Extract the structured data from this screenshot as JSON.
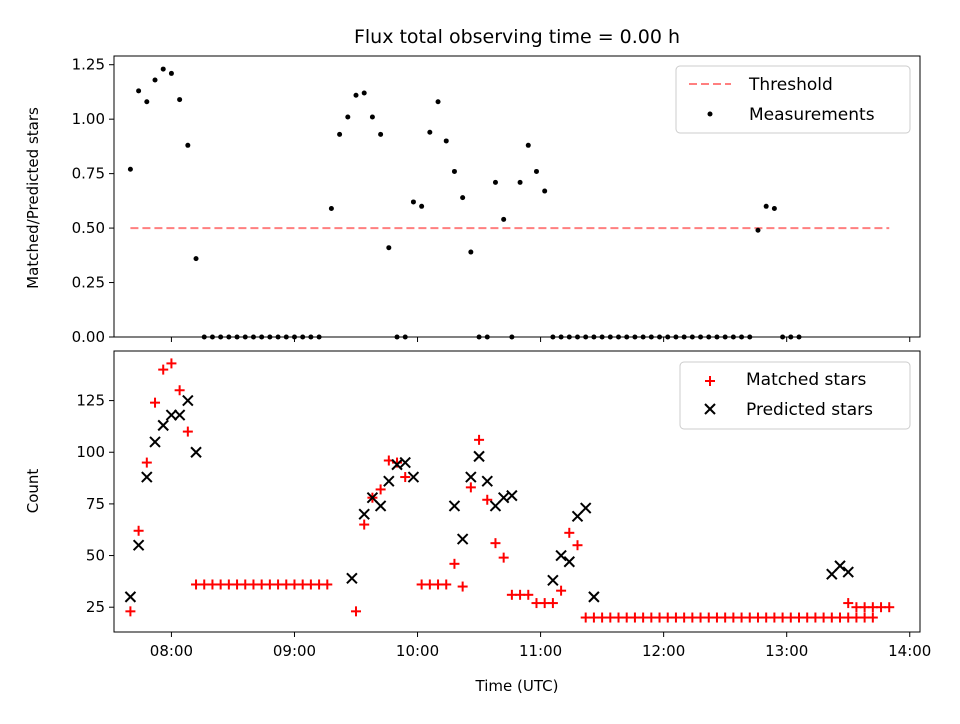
{
  "chart_data": [
    {
      "type": "scatter",
      "title": "Flux total observing time = 0.00 h",
      "xlabel": "",
      "ylabel": "Matched/Predicted stars",
      "ylim": [
        0.0,
        1.29
      ],
      "yticks": [
        0.0,
        0.25,
        0.5,
        0.75,
        1.0,
        1.25
      ],
      "ytick_labels": [
        "0.00",
        "0.25",
        "0.50",
        "0.75",
        "1.00",
        "1.25"
      ],
      "xlim": [
        "07:32",
        "14:05"
      ],
      "xticks": [
        "08:00",
        "09:00",
        "10:00",
        "11:00",
        "12:00",
        "13:00",
        "14:00"
      ],
      "legend_position": "top-right",
      "legend": [
        {
          "label": "Threshold",
          "kind": "dashed-line",
          "color": "#ff7f7f"
        },
        {
          "label": "Measurements",
          "kind": "dot",
          "color": "#000000"
        }
      ],
      "threshold": {
        "name": "Threshold",
        "y": 0.5,
        "x_start": "07:40",
        "x_end": "13:50",
        "color": "#ff7f7f"
      },
      "series": [
        {
          "name": "Measurements",
          "color": "#000000",
          "points": [
            [
              "07:40",
              0.77
            ],
            [
              "07:44",
              1.13
            ],
            [
              "07:48",
              1.08
            ],
            [
              "07:52",
              1.18
            ],
            [
              "07:56",
              1.23
            ],
            [
              "08:00",
              1.21
            ],
            [
              "08:04",
              1.09
            ],
            [
              "08:08",
              0.88
            ],
            [
              "08:12",
              0.36
            ],
            [
              "08:16",
              0.0
            ],
            [
              "08:20",
              0.0
            ],
            [
              "08:24",
              0.0
            ],
            [
              "08:28",
              0.0
            ],
            [
              "08:32",
              0.0
            ],
            [
              "08:36",
              0.0
            ],
            [
              "08:40",
              0.0
            ],
            [
              "08:44",
              0.0
            ],
            [
              "08:48",
              0.0
            ],
            [
              "08:52",
              0.0
            ],
            [
              "08:56",
              0.0
            ],
            [
              "09:00",
              0.0
            ],
            [
              "09:04",
              0.0
            ],
            [
              "09:08",
              0.0
            ],
            [
              "09:12",
              0.0
            ],
            [
              "09:18",
              0.59
            ],
            [
              "09:22",
              0.93
            ],
            [
              "09:26",
              1.01
            ],
            [
              "09:30",
              1.11
            ],
            [
              "09:34",
              1.12
            ],
            [
              "09:38",
              1.01
            ],
            [
              "09:42",
              0.93
            ],
            [
              "09:46",
              0.41
            ],
            [
              "09:50",
              0.0
            ],
            [
              "09:54",
              0.0
            ],
            [
              "09:58",
              0.62
            ],
            [
              "10:02",
              0.6
            ],
            [
              "10:06",
              0.94
            ],
            [
              "10:10",
              1.08
            ],
            [
              "10:14",
              0.9
            ],
            [
              "10:18",
              0.76
            ],
            [
              "10:22",
              0.64
            ],
            [
              "10:26",
              0.39
            ],
            [
              "10:30",
              0.0
            ],
            [
              "10:34",
              0.0
            ],
            [
              "10:38",
              0.71
            ],
            [
              "10:42",
              0.54
            ],
            [
              "10:46",
              0.0
            ],
            [
              "10:50",
              0.71
            ],
            [
              "10:54",
              0.88
            ],
            [
              "10:58",
              0.76
            ],
            [
              "11:02",
              0.67
            ],
            [
              "11:06",
              0.0
            ],
            [
              "11:10",
              0.0
            ],
            [
              "11:14",
              0.0
            ],
            [
              "11:18",
              0.0
            ],
            [
              "11:22",
              0.0
            ],
            [
              "11:26",
              0.0
            ],
            [
              "11:30",
              0.0
            ],
            [
              "11:34",
              0.0
            ],
            [
              "11:38",
              0.0
            ],
            [
              "11:42",
              0.0
            ],
            [
              "11:46",
              0.0
            ],
            [
              "11:50",
              0.0
            ],
            [
              "11:54",
              0.0
            ],
            [
              "11:58",
              0.0
            ],
            [
              "12:02",
              0.0
            ],
            [
              "12:06",
              0.0
            ],
            [
              "12:10",
              0.0
            ],
            [
              "12:14",
              0.0
            ],
            [
              "12:18",
              0.0
            ],
            [
              "12:22",
              0.0
            ],
            [
              "12:26",
              0.0
            ],
            [
              "12:30",
              0.0
            ],
            [
              "12:34",
              0.0
            ],
            [
              "12:38",
              0.0
            ],
            [
              "12:42",
              0.0
            ],
            [
              "12:46",
              0.49
            ],
            [
              "12:50",
              0.6
            ],
            [
              "12:54",
              0.59
            ],
            [
              "12:58",
              0.0
            ],
            [
              "13:02",
              0.0
            ],
            [
              "13:06",
              0.0
            ]
          ]
        }
      ]
    },
    {
      "type": "scatter",
      "title": "",
      "xlabel": "Time (UTC)",
      "ylabel": "Count",
      "ylim": [
        13,
        149
      ],
      "yticks": [
        25,
        50,
        75,
        100,
        125
      ],
      "ytick_labels": [
        "25",
        "50",
        "75",
        "100",
        "125"
      ],
      "xlim": [
        "07:32",
        "14:05"
      ],
      "xticks": [
        "08:00",
        "09:00",
        "10:00",
        "11:00",
        "12:00",
        "13:00",
        "14:00"
      ],
      "xtick_labels": [
        "08:00",
        "09:00",
        "10:00",
        "11:00",
        "12:00",
        "13:00",
        "14:00"
      ],
      "legend_position": "top-right",
      "legend": [
        {
          "label": "Matched stars",
          "kind": "plus",
          "color": "#ff0000"
        },
        {
          "label": "Predicted stars",
          "kind": "x",
          "color": "#000000"
        }
      ],
      "series": [
        {
          "name": "Matched stars",
          "color": "#ff0000",
          "marker": "plus",
          "points": [
            [
              "07:40",
              23
            ],
            [
              "07:44",
              62
            ],
            [
              "07:48",
              95
            ],
            [
              "07:52",
              124
            ],
            [
              "07:56",
              140
            ],
            [
              "08:00",
              143
            ],
            [
              "08:04",
              130
            ],
            [
              "08:08",
              110
            ],
            [
              "08:12",
              36
            ],
            [
              "08:16",
              36
            ],
            [
              "08:20",
              36
            ],
            [
              "08:24",
              36
            ],
            [
              "08:28",
              36
            ],
            [
              "08:32",
              36
            ],
            [
              "08:36",
              36
            ],
            [
              "08:40",
              36
            ],
            [
              "08:44",
              36
            ],
            [
              "08:48",
              36
            ],
            [
              "08:52",
              36
            ],
            [
              "08:56",
              36
            ],
            [
              "09:00",
              36
            ],
            [
              "09:04",
              36
            ],
            [
              "09:08",
              36
            ],
            [
              "09:12",
              36
            ],
            [
              "09:16",
              36
            ],
            [
              "09:30",
              23
            ],
            [
              "09:34",
              65
            ],
            [
              "09:38",
              78
            ],
            [
              "09:42",
              82
            ],
            [
              "09:46",
              96
            ],
            [
              "09:50",
              95
            ],
            [
              "09:54",
              88
            ],
            [
              "10:02",
              36
            ],
            [
              "10:06",
              36
            ],
            [
              "10:10",
              36
            ],
            [
              "10:14",
              36
            ],
            [
              "10:18",
              46
            ],
            [
              "10:22",
              35
            ],
            [
              "10:26",
              83
            ],
            [
              "10:30",
              106
            ],
            [
              "10:34",
              77
            ],
            [
              "10:38",
              56
            ],
            [
              "10:42",
              49
            ],
            [
              "10:46",
              31
            ],
            [
              "10:50",
              31
            ],
            [
              "10:54",
              31
            ],
            [
              "10:58",
              27
            ],
            [
              "11:02",
              27
            ],
            [
              "11:06",
              27
            ],
            [
              "11:10",
              33
            ],
            [
              "11:14",
              61
            ],
            [
              "11:18",
              55
            ],
            [
              "11:22",
              20
            ],
            [
              "11:26",
              20
            ],
            [
              "11:30",
              20
            ],
            [
              "11:34",
              20
            ],
            [
              "11:38",
              20
            ],
            [
              "11:42",
              20
            ],
            [
              "11:46",
              20
            ],
            [
              "11:50",
              20
            ],
            [
              "11:54",
              20
            ],
            [
              "11:58",
              20
            ],
            [
              "12:02",
              20
            ],
            [
              "12:06",
              20
            ],
            [
              "12:10",
              20
            ],
            [
              "12:14",
              20
            ],
            [
              "12:18",
              20
            ],
            [
              "12:22",
              20
            ],
            [
              "12:26",
              20
            ],
            [
              "12:30",
              20
            ],
            [
              "12:34",
              20
            ],
            [
              "12:38",
              20
            ],
            [
              "12:42",
              20
            ],
            [
              "12:46",
              20
            ],
            [
              "12:50",
              20
            ],
            [
              "12:54",
              20
            ],
            [
              "12:58",
              20
            ],
            [
              "13:02",
              20
            ],
            [
              "13:06",
              20
            ],
            [
              "13:10",
              20
            ],
            [
              "13:14",
              20
            ],
            [
              "13:18",
              20
            ],
            [
              "13:22",
              20
            ],
            [
              "13:26",
              20
            ],
            [
              "13:30",
              20
            ],
            [
              "13:34",
              20
            ],
            [
              "13:38",
              20
            ],
            [
              "13:42",
              20
            ],
            [
              "13:30",
              27
            ],
            [
              "13:34",
              25
            ],
            [
              "13:38",
              25
            ],
            [
              "13:42",
              25
            ],
            [
              "13:46",
              25
            ],
            [
              "13:50",
              25
            ]
          ]
        },
        {
          "name": "Predicted stars",
          "color": "#000000",
          "marker": "x",
          "points": [
            [
              "07:40",
              30
            ],
            [
              "07:44",
              55
            ],
            [
              "07:48",
              88
            ],
            [
              "07:52",
              105
            ],
            [
              "07:56",
              113
            ],
            [
              "08:00",
              118
            ],
            [
              "08:04",
              118
            ],
            [
              "08:08",
              125
            ],
            [
              "08:12",
              100
            ],
            [
              "09:28",
              39
            ],
            [
              "09:34",
              70
            ],
            [
              "09:38",
              78
            ],
            [
              "09:42",
              74
            ],
            [
              "09:46",
              86
            ],
            [
              "09:50",
              94
            ],
            [
              "09:54",
              95
            ],
            [
              "09:58",
              88
            ],
            [
              "10:18",
              74
            ],
            [
              "10:22",
              58
            ],
            [
              "10:26",
              88
            ],
            [
              "10:30",
              98
            ],
            [
              "10:34",
              86
            ],
            [
              "10:38",
              74
            ],
            [
              "10:42",
              78
            ],
            [
              "10:46",
              79
            ],
            [
              "11:06",
              38
            ],
            [
              "11:10",
              50
            ],
            [
              "11:14",
              47
            ],
            [
              "11:18",
              69
            ],
            [
              "11:22",
              73
            ],
            [
              "11:26",
              30
            ],
            [
              "13:22",
              41
            ],
            [
              "13:26",
              45
            ],
            [
              "13:30",
              42
            ]
          ]
        }
      ]
    }
  ]
}
